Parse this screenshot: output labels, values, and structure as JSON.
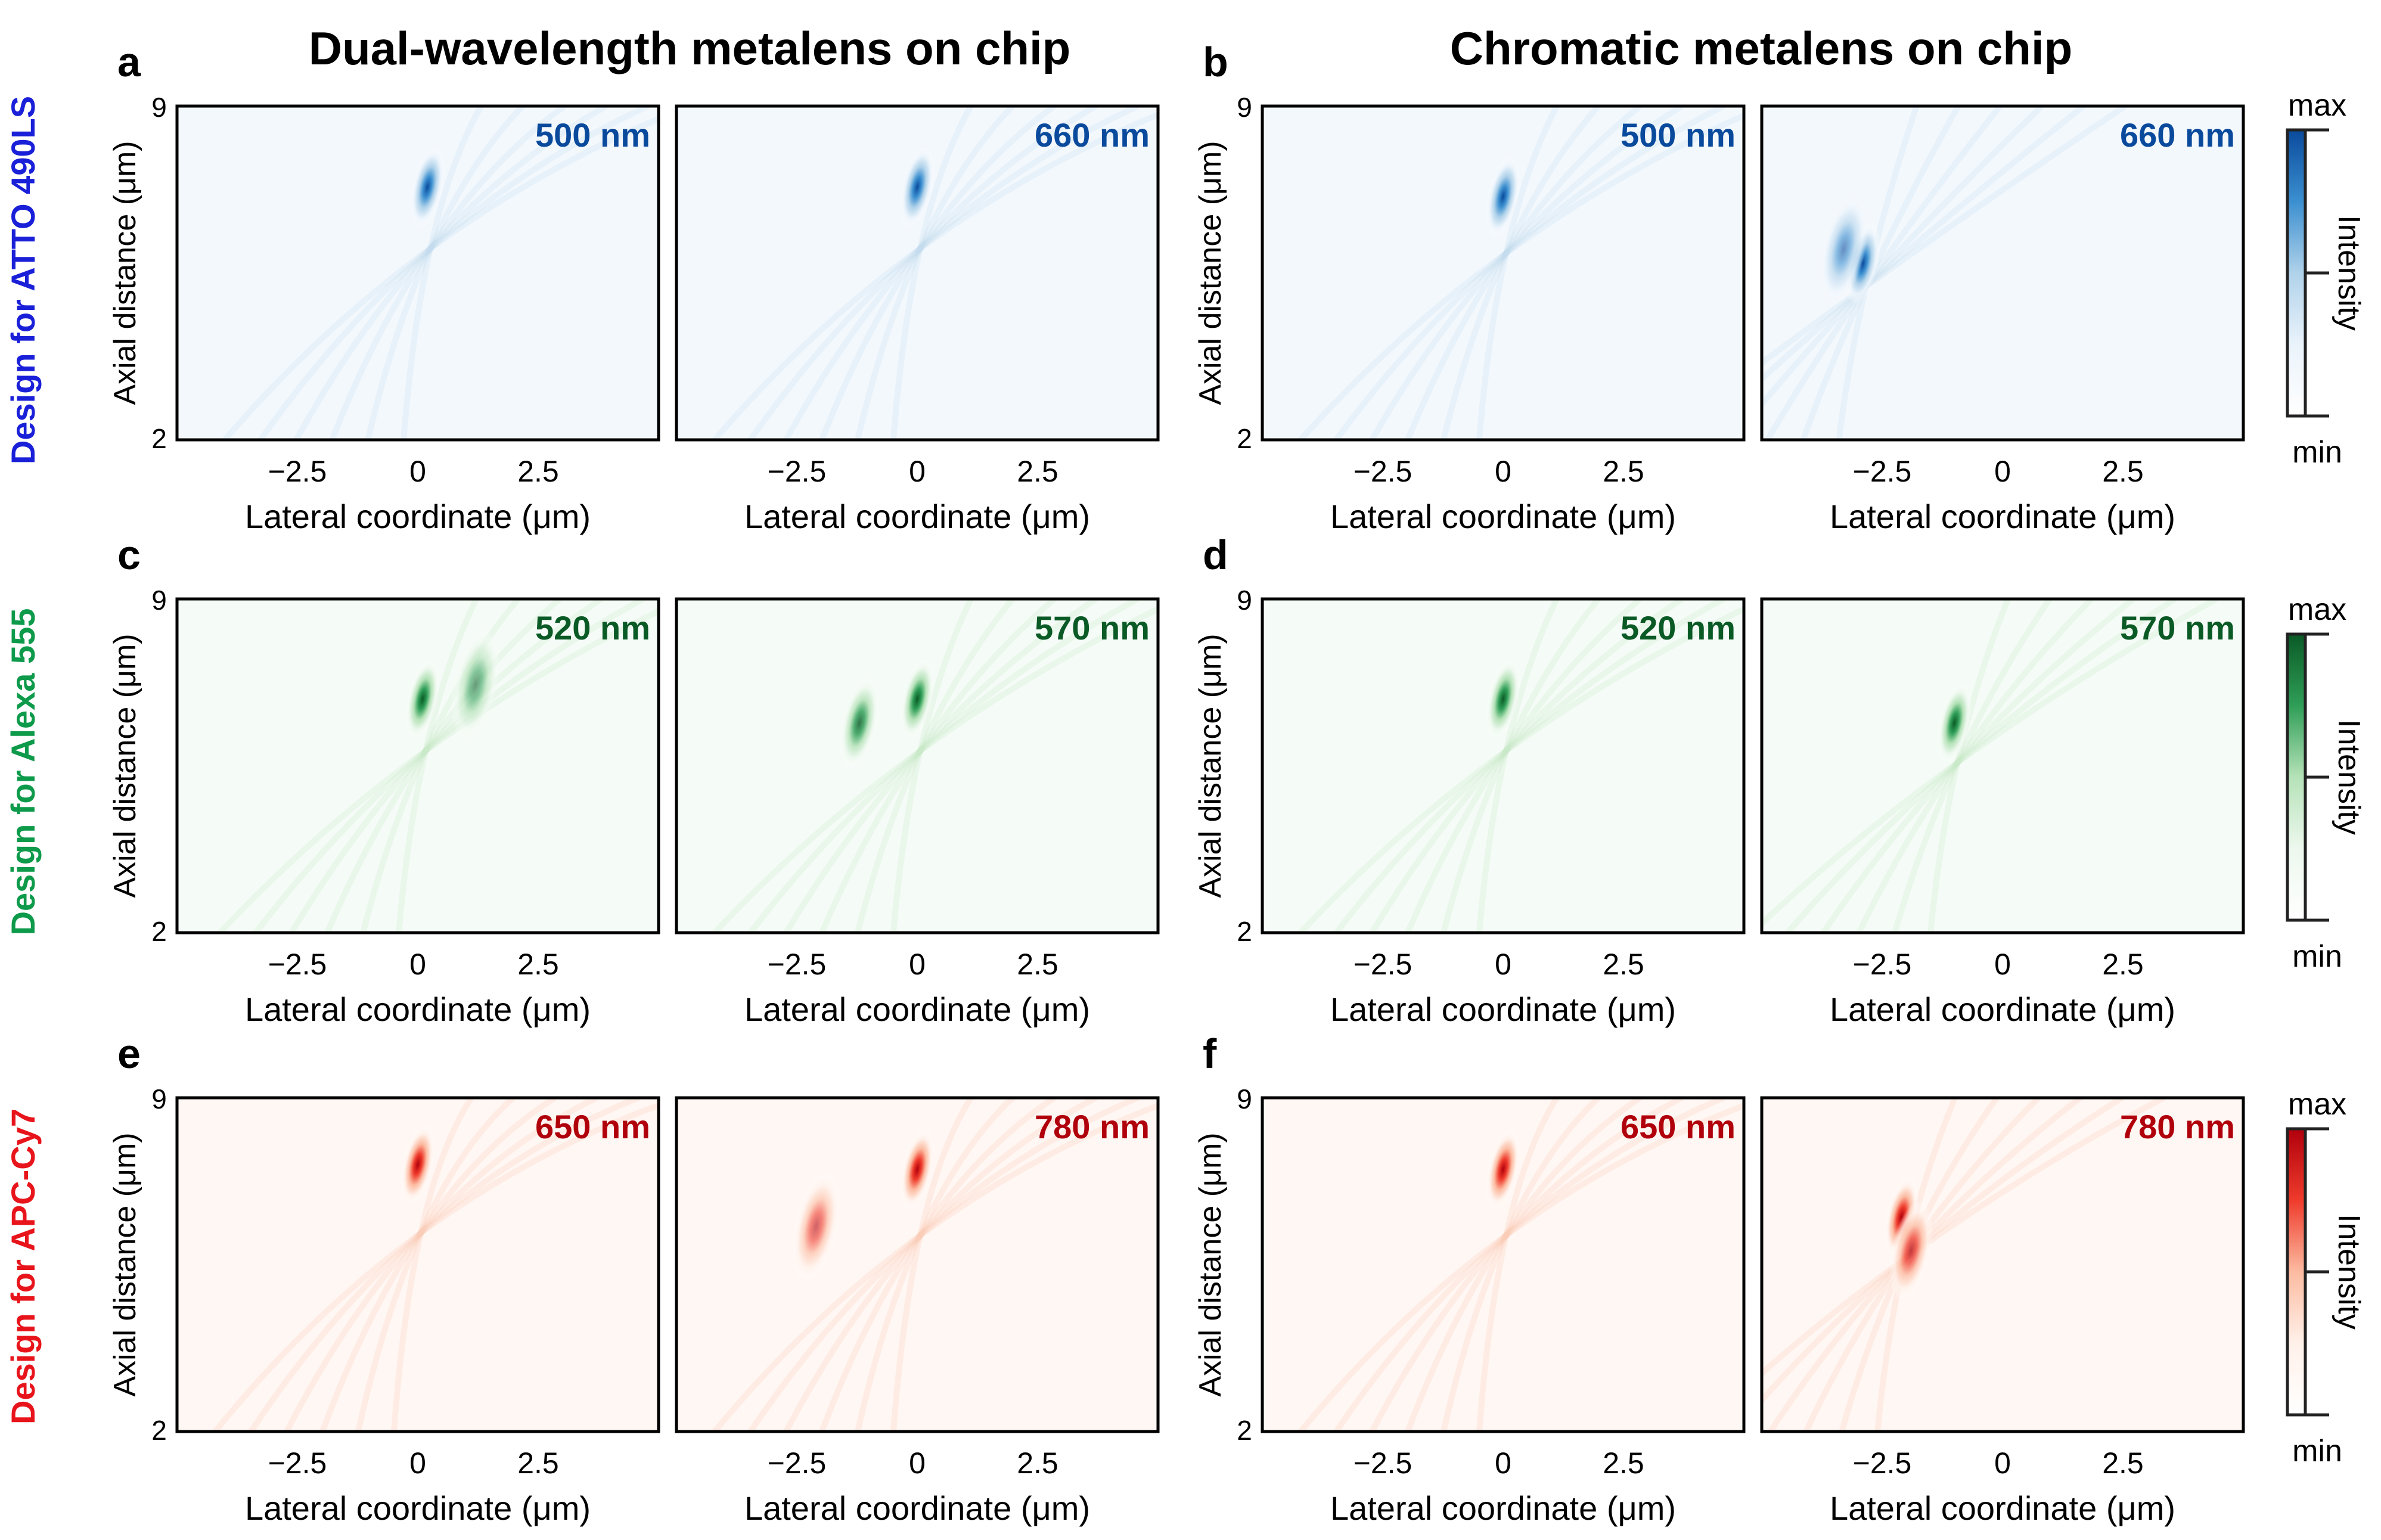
{
  "column_titles": [
    "Dual-wavelength metalens on chip",
    "Chromatic metalens on chip"
  ],
  "row_labels": [
    {
      "text": "Design for ATTO 490LS",
      "color": "#1a20d8"
    },
    {
      "text": "Design for Alexa 555",
      "color": "#0d9a4a"
    },
    {
      "text": "Design for APC-Cy7",
      "color": "#e8141b"
    }
  ],
  "panel_letters": [
    "a",
    "b",
    "c",
    "d",
    "e",
    "f"
  ],
  "colorbar": {
    "max_label": "max",
    "min_label": "min",
    "title": "Intensity"
  },
  "colormaps": {
    "blue": [
      "#ffffff",
      "#eaf3fb",
      "#b0d2ea",
      "#3b8fd0",
      "#0a4a9c"
    ],
    "green": [
      "#ffffff",
      "#edf8ee",
      "#b5e2b8",
      "#2f9e57",
      "#0a5a26"
    ],
    "red": [
      "#ffffff",
      "#fff1ea",
      "#fcbba1",
      "#ef3b2c",
      "#b0000c"
    ]
  },
  "chart_data": [
    {
      "type": "heatmap",
      "panel": "a",
      "title": "Dual-wavelength metalens on chip",
      "xlabel": "Lateral coordinate (μm)",
      "ylabel": "Axial distance (μm)",
      "xlim": [
        -5,
        5
      ],
      "ylim": [
        2,
        9
      ],
      "xticks": [
        "−2.5",
        "0",
        "2.5"
      ],
      "xtick_values": [
        -2.5,
        0,
        2.5
      ],
      "yticks": [
        "2",
        "9"
      ],
      "colormap": "blue",
      "subplots": [
        {
          "wavelength": "500 nm",
          "foci": [
            {
              "x": 0.2,
              "z": 7.3,
              "intensity": 1.0
            }
          ]
        },
        {
          "wavelength": "660 nm",
          "foci": [
            {
              "x": 0.0,
              "z": 7.3,
              "intensity": 1.0
            }
          ]
        }
      ]
    },
    {
      "type": "heatmap",
      "panel": "b",
      "title": "Chromatic metalens on chip",
      "xlabel": "Lateral coordinate (μm)",
      "ylabel": "Axial distance (μm)",
      "xlim": [
        -5,
        5
      ],
      "ylim": [
        2,
        9
      ],
      "xticks": [
        "−2.5",
        "0",
        "2.5"
      ],
      "xtick_values": [
        -2.5,
        0,
        2.5
      ],
      "yticks": [
        "2",
        "9"
      ],
      "colormap": "blue",
      "subplots": [
        {
          "wavelength": "500 nm",
          "foci": [
            {
              "x": 0.0,
              "z": 7.1,
              "intensity": 1.0
            }
          ]
        },
        {
          "wavelength": "660 nm",
          "foci": [
            {
              "x": -2.9,
              "z": 5.7,
              "intensity": 1.0
            },
            {
              "x": -3.3,
              "z": 6.0,
              "intensity": 0.4
            }
          ]
        }
      ]
    },
    {
      "type": "heatmap",
      "panel": "c",
      "xlabel": "Lateral coordinate (μm)",
      "ylabel": "Axial distance (μm)",
      "xlim": [
        -5,
        5
      ],
      "ylim": [
        2,
        9
      ],
      "xticks": [
        "−2.5",
        "0",
        "2.5"
      ],
      "xtick_values": [
        -2.5,
        0,
        2.5
      ],
      "yticks": [
        "2",
        "9"
      ],
      "colormap": "green",
      "subplots": [
        {
          "wavelength": "520 nm",
          "foci": [
            {
              "x": 0.1,
              "z": 6.9,
              "intensity": 1.0
            },
            {
              "x": 1.2,
              "z": 7.2,
              "intensity": 0.35
            }
          ]
        },
        {
          "wavelength": "570 nm",
          "foci": [
            {
              "x": 0.0,
              "z": 6.9,
              "intensity": 1.0
            },
            {
              "x": -1.2,
              "z": 6.4,
              "intensity": 0.75
            }
          ]
        }
      ]
    },
    {
      "type": "heatmap",
      "panel": "d",
      "xlabel": "Lateral coordinate (μm)",
      "ylabel": "Axial distance (μm)",
      "xlim": [
        -5,
        5
      ],
      "ylim": [
        2,
        9
      ],
      "xticks": [
        "−2.5",
        "0",
        "2.5"
      ],
      "xtick_values": [
        -2.5,
        0,
        2.5
      ],
      "yticks": [
        "2",
        "9"
      ],
      "colormap": "green",
      "subplots": [
        {
          "wavelength": "520 nm",
          "foci": [
            {
              "x": 0.0,
              "z": 6.9,
              "intensity": 1.0
            }
          ]
        },
        {
          "wavelength": "570 nm",
          "foci": [
            {
              "x": -1.0,
              "z": 6.4,
              "intensity": 1.0
            }
          ]
        }
      ]
    },
    {
      "type": "heatmap",
      "panel": "e",
      "xlabel": "Lateral coordinate (μm)",
      "ylabel": "Axial distance (μm)",
      "xlim": [
        -5,
        5
      ],
      "ylim": [
        2,
        9
      ],
      "xticks": [
        "−2.5",
        "0",
        "2.5"
      ],
      "xtick_values": [
        -2.5,
        0,
        2.5
      ],
      "yticks": [
        "2",
        "9"
      ],
      "colormap": "red",
      "subplots": [
        {
          "wavelength": "650 nm",
          "foci": [
            {
              "x": 0.0,
              "z": 7.6,
              "intensity": 1.0
            }
          ]
        },
        {
          "wavelength": "780 nm",
          "foci": [
            {
              "x": 0.0,
              "z": 7.5,
              "intensity": 1.0
            },
            {
              "x": -2.1,
              "z": 6.3,
              "intensity": 0.4
            }
          ]
        }
      ]
    },
    {
      "type": "heatmap",
      "panel": "f",
      "xlabel": "Lateral coordinate (μm)",
      "ylabel": "Axial distance (μm)",
      "xlim": [
        -5,
        5
      ],
      "ylim": [
        2,
        9
      ],
      "xticks": [
        "−2.5",
        "0",
        "2.5"
      ],
      "xtick_values": [
        -2.5,
        0,
        2.5
      ],
      "yticks": [
        "2",
        "9"
      ],
      "colormap": "red",
      "subplots": [
        {
          "wavelength": "650 nm",
          "foci": [
            {
              "x": 0.0,
              "z": 7.5,
              "intensity": 1.0
            }
          ]
        },
        {
          "wavelength": "780 nm",
          "foci": [
            {
              "x": -2.1,
              "z": 6.5,
              "intensity": 1.0
            },
            {
              "x": -1.9,
              "z": 5.8,
              "intensity": 0.6
            }
          ]
        }
      ]
    }
  ]
}
